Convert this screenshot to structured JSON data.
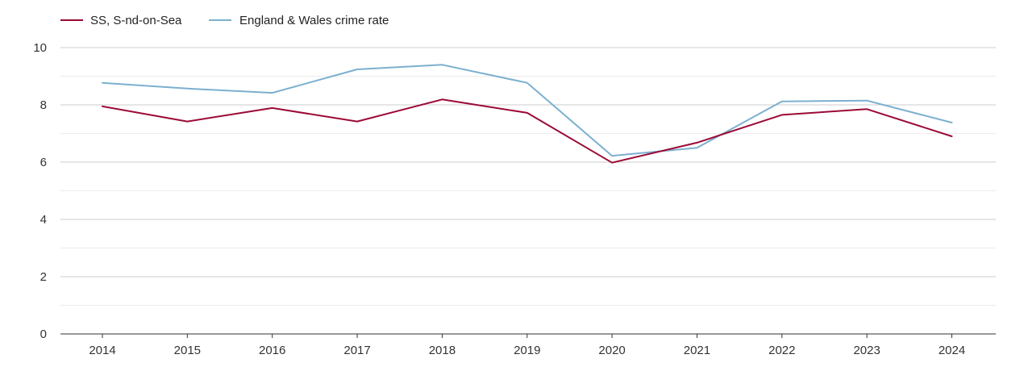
{
  "chart_data": {
    "type": "line",
    "categories": [
      "2014",
      "2015",
      "2016",
      "2017",
      "2018",
      "2019",
      "2020",
      "2021",
      "2022",
      "2023",
      "2024"
    ],
    "ylim": [
      0,
      10
    ],
    "yticks": [
      0,
      2,
      4,
      6,
      8,
      10
    ],
    "grid": true,
    "minor_grid": true,
    "legend_position": "top-left",
    "title": "",
    "xlabel": "",
    "ylabel": "",
    "series": [
      {
        "name": "SS, S-nd-on-Sea",
        "color": "#9b0a35",
        "values": [
          7.95,
          7.42,
          7.89,
          7.42,
          8.19,
          7.72,
          5.98,
          6.68,
          7.65,
          7.85,
          6.9
        ]
      },
      {
        "name": "England & Wales crime rate",
        "color": "#7bb0cf",
        "values": [
          8.77,
          8.57,
          8.42,
          9.24,
          9.4,
          8.77,
          6.22,
          6.5,
          8.12,
          8.15,
          7.38
        ]
      }
    ]
  }
}
